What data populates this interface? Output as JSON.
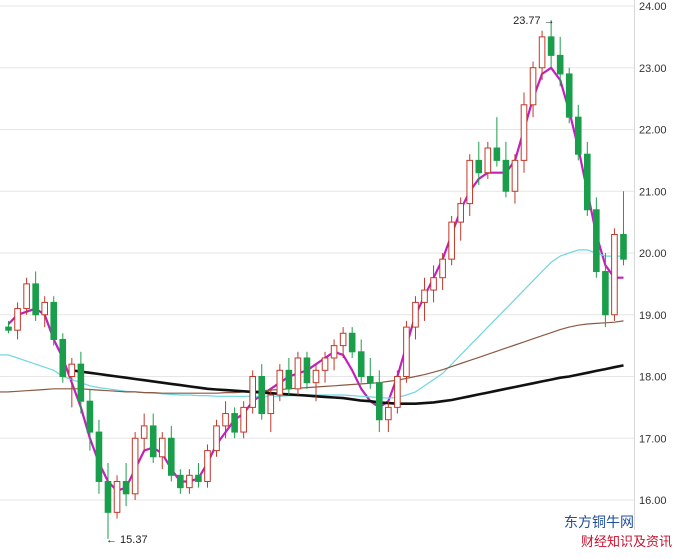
{
  "watermark": {
    "line1": "东方铜牛网",
    "line2": "财经知识及资讯"
  },
  "chart_data": {
    "type": "candlestick",
    "y_ticks": [
      "24.00",
      "23.00",
      "22.00",
      "21.00",
      "20.00",
      "19.00",
      "18.00",
      "17.00",
      "16.00"
    ],
    "ylim": [
      15.3,
      24.3
    ],
    "grid": true,
    "colors": {
      "up": "#c0392b",
      "down": "#1a9e4b",
      "ma5": "#c21fbf",
      "ma_light": "#6fd6e0",
      "ma_brown": "#8a5a44",
      "ma_long": "#111111"
    },
    "annotations": {
      "high": "23.77",
      "low": "15.37"
    },
    "candles": [
      [
        18.8,
        18.9,
        18.7,
        18.75
      ],
      [
        18.75,
        19.2,
        18.6,
        19.1
      ],
      [
        19.1,
        19.6,
        19.0,
        19.5
      ],
      [
        19.5,
        19.7,
        18.9,
        19.0
      ],
      [
        19.0,
        19.3,
        18.8,
        19.2
      ],
      [
        19.2,
        19.3,
        18.5,
        18.6
      ],
      [
        18.6,
        18.7,
        17.9,
        18.0
      ],
      [
        18.0,
        18.3,
        17.5,
        18.2
      ],
      [
        18.2,
        18.4,
        17.4,
        17.6
      ],
      [
        17.6,
        17.8,
        16.8,
        17.1
      ],
      [
        17.1,
        17.3,
        16.1,
        16.3
      ],
      [
        16.3,
        16.6,
        15.37,
        15.8
      ],
      [
        15.8,
        16.4,
        15.7,
        16.3
      ],
      [
        16.3,
        16.6,
        15.9,
        16.1
      ],
      [
        16.1,
        17.1,
        16.0,
        17.0
      ],
      [
        17.0,
        17.4,
        16.8,
        17.2
      ],
      [
        17.2,
        17.4,
        16.6,
        16.7
      ],
      [
        16.7,
        17.1,
        16.5,
        17.0
      ],
      [
        17.0,
        17.2,
        16.3,
        16.4
      ],
      [
        16.4,
        16.5,
        16.1,
        16.2
      ],
      [
        16.2,
        16.5,
        16.1,
        16.4
      ],
      [
        16.4,
        16.6,
        16.2,
        16.3
      ],
      [
        16.3,
        16.9,
        16.2,
        16.8
      ],
      [
        16.8,
        17.3,
        16.7,
        17.2
      ],
      [
        17.2,
        17.6,
        17.0,
        17.4
      ],
      [
        17.4,
        17.5,
        17.0,
        17.1
      ],
      [
        17.1,
        17.6,
        17.0,
        17.5
      ],
      [
        17.5,
        18.1,
        17.4,
        18.0
      ],
      [
        18.0,
        18.2,
        17.3,
        17.4
      ],
      [
        17.4,
        17.8,
        17.1,
        17.7
      ],
      [
        17.7,
        18.2,
        17.6,
        18.1
      ],
      [
        18.1,
        18.3,
        17.7,
        17.8
      ],
      [
        17.8,
        18.4,
        17.7,
        18.3
      ],
      [
        18.3,
        18.4,
        17.8,
        17.9
      ],
      [
        17.9,
        18.2,
        17.6,
        18.1
      ],
      [
        18.1,
        18.4,
        17.9,
        18.3
      ],
      [
        18.3,
        18.6,
        18.1,
        18.5
      ],
      [
        18.5,
        18.8,
        18.3,
        18.7
      ],
      [
        18.7,
        18.8,
        18.3,
        18.4
      ],
      [
        18.4,
        18.6,
        17.9,
        18.0
      ],
      [
        18.0,
        18.3,
        17.8,
        17.9
      ],
      [
        17.9,
        18.1,
        17.1,
        17.3
      ],
      [
        17.3,
        17.6,
        17.1,
        17.5
      ],
      [
        17.5,
        18.1,
        17.4,
        18.0
      ],
      [
        18.0,
        18.9,
        17.9,
        18.8
      ],
      [
        18.8,
        19.3,
        18.6,
        19.2
      ],
      [
        19.2,
        19.6,
        18.9,
        19.4
      ],
      [
        19.4,
        19.8,
        19.2,
        19.6
      ],
      [
        19.6,
        20.0,
        19.4,
        19.9
      ],
      [
        19.9,
        20.6,
        19.8,
        20.5
      ],
      [
        20.5,
        20.9,
        20.2,
        20.8
      ],
      [
        20.8,
        21.6,
        20.6,
        21.5
      ],
      [
        21.5,
        21.8,
        21.1,
        21.3
      ],
      [
        21.3,
        21.8,
        21.2,
        21.7
      ],
      [
        21.7,
        22.2,
        21.4,
        21.5
      ],
      [
        21.5,
        21.8,
        20.9,
        21.0
      ],
      [
        21.0,
        21.6,
        20.8,
        21.5
      ],
      [
        21.5,
        22.6,
        21.3,
        22.4
      ],
      [
        22.4,
        23.1,
        22.2,
        23.0
      ],
      [
        23.0,
        23.6,
        22.8,
        23.5
      ],
      [
        23.5,
        23.77,
        23.0,
        23.2
      ],
      [
        23.2,
        23.5,
        22.7,
        22.9
      ],
      [
        22.9,
        23.0,
        22.1,
        22.2
      ],
      [
        22.2,
        22.4,
        21.5,
        21.6
      ],
      [
        21.6,
        21.8,
        20.6,
        20.7
      ],
      [
        20.7,
        20.9,
        19.6,
        19.7
      ],
      [
        19.7,
        20.0,
        18.8,
        19.0
      ],
      [
        19.0,
        20.4,
        18.9,
        20.3
      ],
      [
        20.3,
        21.0,
        19.8,
        19.9
      ]
    ],
    "series": [
      {
        "values": [
          18.85,
          19.0,
          19.05,
          19.1,
          19.0,
          18.6,
          18.3,
          17.9,
          17.5,
          17.0,
          16.6,
          16.3,
          16.15,
          16.2,
          16.5,
          16.8,
          16.85,
          16.75,
          16.5,
          16.3,
          16.3,
          16.35,
          16.6,
          16.9,
          17.1,
          17.3,
          17.4,
          17.6,
          17.7,
          17.8,
          17.9,
          18.0,
          18.05,
          18.1,
          18.2,
          18.3,
          18.4,
          18.35,
          18.1,
          17.8,
          17.6,
          17.5,
          17.6,
          18.0,
          18.5,
          19.0,
          19.3,
          19.6,
          19.9,
          20.3,
          20.7,
          21.0,
          21.2,
          21.3,
          21.3,
          21.3,
          21.5,
          22.0,
          22.5,
          22.9,
          23.0,
          22.8,
          22.3,
          21.7,
          21.0,
          20.3,
          19.8,
          19.6,
          19.6
        ]
      },
      {
        "values": [
          18.35,
          18.3,
          18.25,
          18.2,
          18.15,
          18.1,
          18.0,
          17.95,
          17.9,
          17.85,
          17.82,
          17.8,
          17.78,
          17.76,
          17.75,
          17.74,
          17.73,
          17.72,
          17.71,
          17.7,
          17.7,
          17.69,
          17.69,
          17.68,
          17.68,
          17.68,
          17.68,
          17.68,
          17.68,
          17.68,
          17.68,
          17.69,
          17.69,
          17.7,
          17.7,
          17.7,
          17.7,
          17.7,
          17.69,
          17.68,
          17.67,
          17.66,
          17.65,
          17.66,
          17.7,
          17.75,
          17.85,
          17.95,
          18.05,
          18.2,
          18.35,
          18.5,
          18.65,
          18.8,
          18.95,
          19.1,
          19.25,
          19.4,
          19.55,
          19.7,
          19.85,
          19.95,
          20.0,
          20.05,
          20.05,
          20.0,
          19.95,
          19.95,
          19.95
        ]
      },
      {
        "values": [
          17.75,
          17.76,
          17.77,
          17.78,
          17.79,
          17.8,
          17.8,
          17.8,
          17.8,
          17.79,
          17.78,
          17.77,
          17.76,
          17.75,
          17.75,
          17.74,
          17.74,
          17.73,
          17.73,
          17.73,
          17.73,
          17.73,
          17.73,
          17.73,
          17.74,
          17.74,
          17.75,
          17.76,
          17.77,
          17.78,
          17.79,
          17.8,
          17.81,
          17.82,
          17.83,
          17.84,
          17.85,
          17.86,
          17.87,
          17.88,
          17.89,
          17.9,
          17.92,
          17.94,
          17.97,
          18.0,
          18.03,
          18.07,
          18.11,
          18.16,
          18.21,
          18.26,
          18.31,
          18.36,
          18.41,
          18.46,
          18.51,
          18.56,
          18.61,
          18.66,
          18.71,
          18.76,
          18.8,
          18.83,
          18.85,
          18.86,
          18.87,
          18.88,
          18.9
        ]
      },
      {
        "values": [
          null,
          null,
          null,
          null,
          null,
          null,
          null,
          18.1,
          18.08,
          18.06,
          18.04,
          18.02,
          18.0,
          17.98,
          17.96,
          17.94,
          17.92,
          17.9,
          17.88,
          17.86,
          17.84,
          17.82,
          17.8,
          17.79,
          17.78,
          17.77,
          17.76,
          17.75,
          17.74,
          17.73,
          17.72,
          17.71,
          17.7,
          17.69,
          17.68,
          17.67,
          17.66,
          17.65,
          17.63,
          17.61,
          17.6,
          17.58,
          17.57,
          17.56,
          17.56,
          17.56,
          17.57,
          17.58,
          17.6,
          17.62,
          17.65,
          17.68,
          17.71,
          17.74,
          17.77,
          17.8,
          17.83,
          17.86,
          17.89,
          17.92,
          17.95,
          17.98,
          18.0,
          18.03,
          18.06,
          18.09,
          18.12,
          18.15,
          18.18
        ]
      }
    ]
  }
}
